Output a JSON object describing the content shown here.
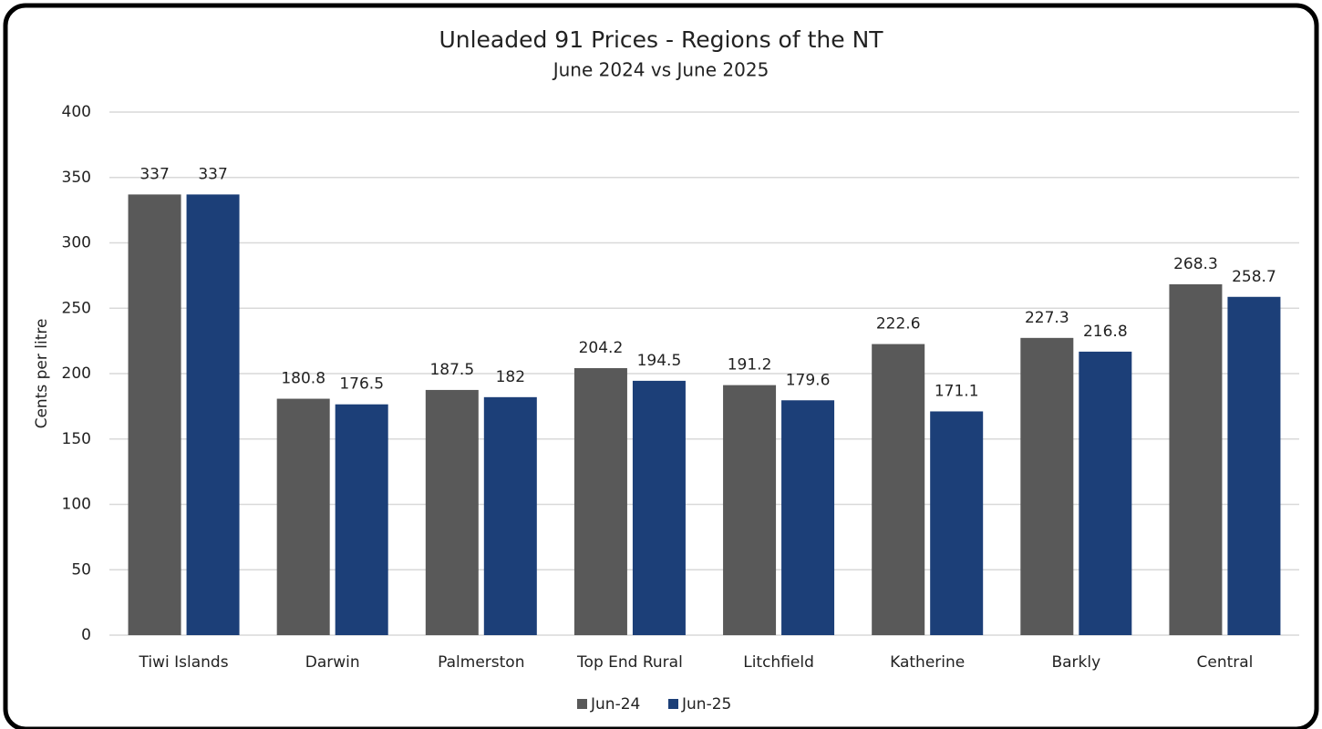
{
  "chart_data": {
    "type": "bar",
    "title": "Unleaded 91 Prices - Regions of the NT",
    "subtitle": "June 2024 vs June 2025",
    "y_label": "Cents per litre",
    "categories": [
      "Tiwi Islands",
      "Darwin",
      "Palmerston",
      "Top End Rural",
      "Litchfield",
      "Katherine",
      "Barkly",
      "Central"
    ],
    "series": [
      {
        "name": "Jun-24",
        "color": "#595959",
        "values": [
          337,
          180.8,
          187.5,
          204.2,
          191.2,
          222.6,
          227.3,
          268.3
        ]
      },
      {
        "name": "Jun-25",
        "color": "#1c3f78",
        "values": [
          337,
          176.5,
          182,
          194.5,
          179.6,
          171.1,
          216.8,
          258.7
        ]
      }
    ],
    "ylim": [
      0,
      400
    ],
    "yticks": [
      0,
      50,
      100,
      150,
      200,
      250,
      300,
      350,
      400
    ],
    "grid": true,
    "legend": "bottom"
  }
}
